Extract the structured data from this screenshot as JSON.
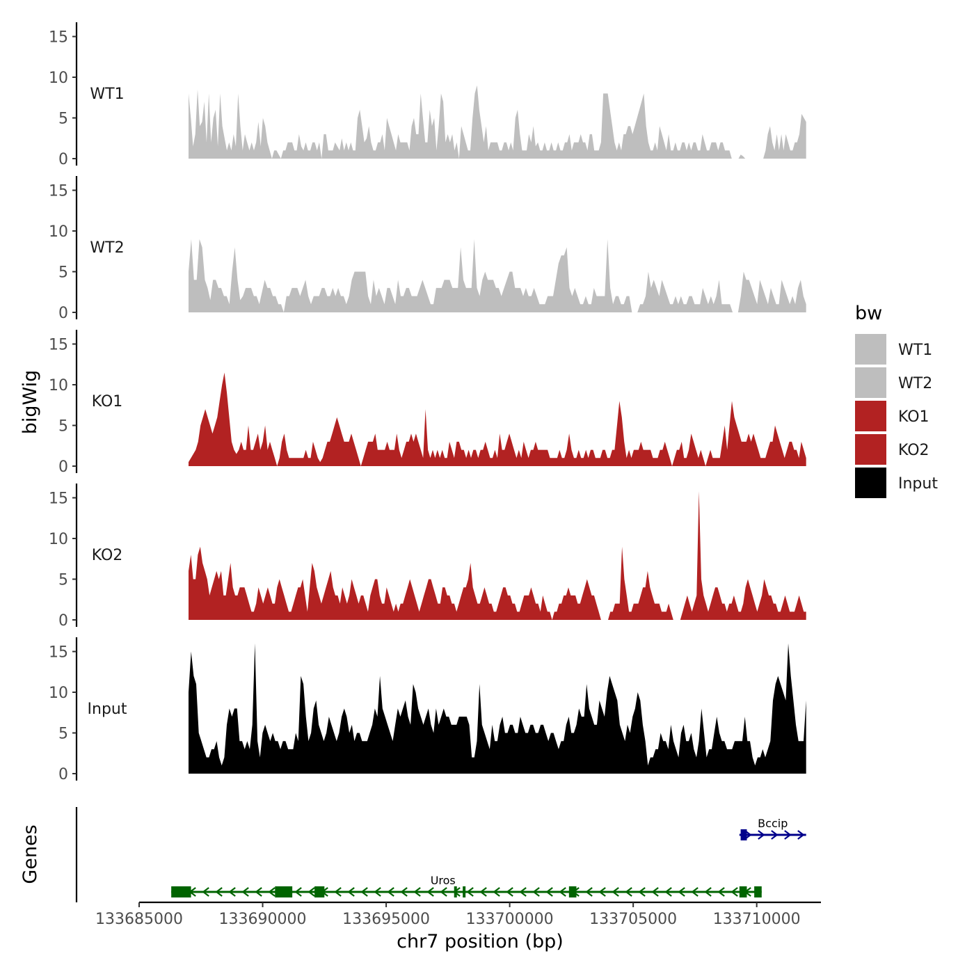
{
  "chart_data": {
    "type": "area",
    "ylabel": "bigWig",
    "xlabel": "chr7 position (bp)",
    "ylim": [
      0,
      16
    ],
    "yticks": [
      0,
      5,
      10,
      15
    ],
    "x_range": [
      133685000,
      133712600
    ],
    "data_span": [
      133687000,
      133712000
    ],
    "xticks": [
      133685000,
      133690000,
      133695000,
      133700000,
      133705000,
      133710000
    ],
    "xtick_labels": [
      "133685000",
      "133690000",
      "133695000",
      "133700000",
      "133705000",
      "133710000"
    ],
    "series": [
      {
        "name": "WT1",
        "color": "#bebebe",
        "values": [
          8,
          5,
          1.5,
          3,
          8.5,
          4,
          4.5,
          7,
          2,
          8,
          2,
          5,
          6,
          1.5,
          8,
          4,
          2.5,
          1,
          2,
          1,
          3,
          1.5,
          8,
          4,
          1,
          3,
          2,
          1,
          2,
          1,
          2,
          4.5,
          1.5,
          5,
          4,
          2,
          1,
          0,
          1,
          1,
          0.5,
          0,
          1,
          1,
          2,
          2,
          2,
          1,
          1,
          3,
          1.5,
          1,
          2,
          1,
          1,
          2,
          2,
          1,
          2,
          0,
          3,
          3,
          1,
          1,
          1,
          2,
          1.5,
          1,
          2.5,
          1,
          2,
          1,
          2,
          1,
          1,
          5,
          6,
          4,
          2,
          2.5,
          4,
          2,
          1,
          1,
          2,
          2,
          3,
          1,
          5,
          4,
          3,
          2,
          1,
          3,
          2,
          2,
          2,
          2,
          1,
          4,
          5,
          3,
          3,
          8,
          5,
          2,
          2,
          6,
          4,
          5,
          1,
          4,
          8,
          7,
          2,
          3,
          2,
          3,
          1,
          2,
          0,
          4,
          3,
          2,
          1,
          1,
          5,
          8,
          9,
          6,
          4,
          2,
          4,
          1,
          2,
          2,
          2,
          2,
          1,
          1,
          2,
          2,
          1,
          2,
          1,
          5,
          6,
          3,
          1,
          1,
          1,
          3,
          2,
          4,
          1.5,
          2,
          1,
          1,
          2,
          1,
          1,
          2,
          1,
          1,
          2,
          1,
          1,
          2,
          2,
          3,
          1,
          2,
          2,
          2,
          3,
          2,
          2,
          1,
          3,
          3,
          1,
          1,
          1,
          2,
          8,
          8,
          8,
          6,
          4,
          2,
          1,
          2,
          1,
          3,
          3,
          4,
          4,
          3,
          4,
          5,
          6,
          7,
          8,
          4,
          2,
          1,
          1,
          2,
          1,
          4,
          3,
          2,
          1,
          3,
          1,
          1,
          2,
          1,
          1,
          2,
          2,
          1,
          2,
          1,
          2,
          2,
          1,
          1,
          3,
          2,
          1,
          1,
          2,
          2,
          2,
          1,
          2,
          2,
          1,
          1,
          1,
          0,
          0,
          0,
          0,
          0.5,
          0.3,
          0,
          0,
          0,
          0,
          0,
          0,
          0,
          0,
          0,
          1,
          3,
          4,
          2,
          1,
          3,
          1,
          3,
          1,
          3,
          2,
          1,
          1,
          2,
          2,
          3,
          5.5,
          5,
          4.5
        ]
      },
      {
        "name": "WT2",
        "color": "#bebebe",
        "values": [
          5,
          9,
          4,
          4,
          9,
          8,
          4,
          3,
          1.5,
          4,
          4,
          3,
          3,
          2,
          2,
          1,
          5,
          8,
          4,
          1.5,
          2,
          3,
          3,
          3,
          2,
          2,
          1,
          2.5,
          4,
          3,
          3,
          2,
          2,
          1,
          1,
          0,
          2,
          2,
          3,
          3,
          3,
          2,
          3,
          4,
          2,
          1,
          2,
          2,
          2,
          3,
          3,
          2,
          2,
          3,
          2,
          3,
          2,
          2,
          1,
          2,
          4,
          5,
          5,
          5,
          5,
          5,
          2,
          1,
          4,
          2,
          3,
          2,
          1,
          3,
          3,
          2,
          1,
          4,
          2,
          2,
          3,
          3,
          2,
          2,
          2,
          3,
          4,
          3,
          2,
          1,
          1,
          3,
          3,
          3,
          4,
          4,
          4,
          3,
          3,
          3,
          8,
          4,
          3,
          3,
          3,
          9,
          3,
          2,
          4,
          5,
          4,
          4,
          4,
          3,
          3,
          2,
          3,
          4,
          5,
          5,
          3,
          3,
          3,
          2,
          3,
          2,
          2,
          3,
          2,
          1,
          1,
          1,
          2,
          2,
          2,
          4,
          6,
          7,
          7,
          8,
          3,
          2,
          3,
          2,
          1,
          1,
          2,
          1,
          1,
          3,
          2,
          2,
          2,
          2,
          9,
          3,
          1,
          2,
          2,
          1,
          1,
          2,
          2,
          0,
          0,
          0,
          1,
          1,
          2,
          5,
          3,
          4,
          3,
          2,
          4,
          3,
          2,
          1,
          1,
          2,
          1,
          2,
          1,
          1,
          2,
          2,
          1,
          1,
          1,
          3,
          2,
          1,
          2,
          1,
          2,
          4,
          1,
          1,
          1,
          1,
          0,
          0,
          0,
          2,
          5,
          4,
          4,
          3,
          2,
          1,
          4,
          3,
          2,
          1,
          3,
          2,
          1,
          1,
          4,
          3,
          2,
          1,
          2,
          1,
          3,
          4,
          2,
          1
        ]
      },
      {
        "name": "KO1",
        "color": "#b22222",
        "values": [
          0.5,
          1,
          1.5,
          2,
          3,
          5,
          6,
          7,
          6,
          5,
          4,
          5,
          6,
          8,
          10,
          11.5,
          9,
          6,
          3,
          2,
          1.5,
          2,
          3,
          2,
          2,
          5,
          2,
          2,
          3,
          4,
          2,
          3,
          5,
          2,
          3,
          2,
          1,
          0,
          1,
          3,
          4,
          2,
          1,
          1,
          1,
          1,
          1,
          1,
          1,
          2,
          1,
          1,
          3,
          2,
          1,
          0.5,
          1,
          2,
          3,
          3,
          4,
          5,
          6,
          5,
          4,
          3,
          3,
          3,
          4,
          3,
          2,
          1,
          0,
          1,
          2,
          3,
          3,
          3,
          4,
          2,
          2,
          2,
          2,
          3,
          2,
          2,
          2,
          4,
          2,
          1,
          2,
          3,
          3,
          4,
          3,
          4,
          3,
          2,
          1,
          7,
          2,
          1,
          2,
          1,
          2,
          1,
          2,
          1,
          1,
          3,
          2,
          1,
          3,
          3,
          2,
          2,
          1,
          2,
          1,
          2,
          2,
          1,
          2,
          2,
          3,
          2,
          1,
          1,
          2,
          1,
          4,
          2,
          2,
          3,
          4,
          3,
          2,
          1,
          2,
          1,
          3,
          2,
          1,
          2,
          2,
          3,
          2,
          2,
          2,
          2,
          2,
          1,
          1,
          1,
          1,
          2,
          1,
          1,
          2,
          4,
          2,
          1,
          1,
          2,
          1,
          1,
          2,
          1,
          2,
          2,
          1,
          1,
          1,
          2,
          2,
          1,
          1,
          2,
          2,
          5,
          8,
          6,
          3,
          1,
          2,
          1,
          2,
          2,
          2,
          3,
          2,
          2,
          2,
          2,
          1,
          1,
          1,
          2,
          2,
          3,
          2,
          1,
          0,
          1,
          2,
          2,
          3,
          1,
          1,
          2,
          4,
          3,
          2,
          1,
          2,
          1,
          0,
          1,
          2,
          1,
          1,
          1,
          1,
          3,
          5,
          2,
          5,
          8,
          6,
          5,
          4,
          3,
          3,
          3,
          4,
          3,
          4,
          3,
          2,
          1,
          1,
          1,
          2,
          3,
          3,
          5,
          4,
          3,
          2,
          1,
          2,
          3,
          3,
          2,
          2,
          1,
          3,
          2,
          1
        ]
      },
      {
        "name": "KO2",
        "color": "#b22222",
        "values": [
          6,
          8,
          5,
          5,
          8,
          9,
          7,
          6,
          5,
          3,
          4,
          5,
          6,
          5,
          6,
          3,
          3,
          5,
          7,
          4,
          3,
          3,
          4,
          4,
          4,
          3,
          2,
          1,
          1,
          2,
          4,
          3,
          2,
          3,
          4,
          3,
          2,
          2,
          4,
          5,
          4,
          3,
          2,
          1,
          1,
          2,
          3,
          4,
          4,
          5,
          3,
          1,
          4,
          7,
          6,
          4,
          3,
          2,
          3,
          4,
          5,
          6,
          4,
          3,
          3,
          2,
          4,
          3,
          2,
          3,
          5,
          4,
          3,
          2,
          3,
          3,
          2,
          1,
          3,
          4,
          5,
          5,
          3,
          2,
          2,
          4,
          3,
          2,
          1,
          2,
          1,
          2,
          2,
          3,
          4,
          5,
          4,
          3,
          2,
          1,
          2,
          3,
          4,
          5,
          5,
          4,
          3,
          2,
          2,
          4,
          4,
          3,
          3,
          2,
          2,
          1,
          2,
          3,
          4,
          4,
          5,
          7,
          4,
          3,
          2,
          2,
          3,
          4,
          3,
          2,
          2,
          1,
          1,
          2,
          3,
          4,
          4,
          3,
          3,
          2,
          2,
          1,
          1,
          2,
          3,
          3,
          3,
          4,
          3,
          2,
          2,
          1,
          3,
          2,
          1,
          1,
          0,
          1,
          1,
          2,
          2,
          3,
          3,
          4,
          3,
          3,
          3,
          2,
          2,
          3,
          4,
          5,
          4,
          3,
          3,
          2,
          1,
          0,
          0,
          0,
          0,
          1,
          1,
          2,
          2,
          2,
          9,
          5,
          3,
          1,
          1,
          2,
          2,
          2,
          3,
          4,
          4,
          6,
          4,
          3,
          2,
          2,
          2,
          1,
          1,
          1,
          2,
          1,
          0,
          0,
          0,
          0,
          1,
          2,
          3,
          2,
          1,
          2,
          3,
          15.8,
          5,
          3,
          2,
          1,
          2,
          3,
          4,
          4,
          3,
          2,
          2,
          1,
          2,
          2,
          3,
          2,
          1,
          1,
          2,
          4,
          5,
          4,
          3,
          2,
          1,
          2,
          3,
          5,
          4,
          3,
          3,
          2,
          2,
          1,
          1,
          2,
          3,
          2,
          1,
          1,
          1,
          2,
          3,
          2,
          1,
          1
        ]
      },
      {
        "name": "Input",
        "color": "#000000",
        "values": [
          10,
          15,
          12,
          11,
          5,
          4,
          3,
          2,
          2,
          3,
          3,
          4,
          2,
          1,
          2,
          6,
          8,
          7,
          8,
          8,
          4,
          4,
          3,
          4,
          3,
          6,
          16,
          4,
          2,
          5,
          6,
          5,
          4,
          5,
          4,
          4,
          3,
          4,
          4,
          3,
          3,
          3,
          5,
          4,
          12,
          11,
          7,
          4,
          5,
          8,
          9,
          6,
          5,
          4,
          5,
          7,
          6,
          5,
          4,
          5,
          7,
          8,
          7,
          5,
          6,
          4,
          5,
          5,
          4,
          4,
          4,
          5,
          6,
          8,
          7,
          12,
          8,
          7,
          6,
          5,
          4,
          6,
          8,
          7,
          8,
          9,
          7,
          6,
          11,
          10,
          8,
          7,
          6,
          7,
          8,
          6,
          5,
          8,
          6,
          7,
          8,
          7,
          7,
          6,
          6,
          6,
          7,
          7,
          7,
          7,
          6,
          2,
          2,
          4,
          11,
          6,
          5,
          4,
          3,
          6,
          4,
          4,
          6,
          7,
          5,
          5,
          6,
          6,
          5,
          5,
          7,
          6,
          5,
          5,
          6,
          6,
          5,
          5,
          6,
          6,
          5,
          4,
          5,
          5,
          4,
          3,
          4,
          4,
          6,
          7,
          5,
          5,
          6,
          8,
          7,
          7,
          11,
          8,
          7,
          6,
          6,
          9,
          8,
          7,
          10,
          12,
          11,
          10,
          9,
          6,
          5,
          4,
          6,
          5,
          7,
          8,
          10,
          9,
          6,
          4,
          1,
          2,
          2,
          3,
          3,
          5,
          4,
          4,
          3,
          6,
          4,
          3,
          2,
          5,
          6,
          4,
          4,
          5,
          3,
          2,
          4,
          8,
          5,
          2,
          3,
          3,
          5,
          7,
          5,
          4,
          4,
          3,
          3,
          3,
          4,
          4,
          4,
          4,
          7,
          4,
          4,
          2,
          1,
          2,
          2,
          3,
          2,
          3,
          4,
          9,
          11,
          12,
          11,
          10,
          9,
          16,
          12,
          9,
          6,
          4,
          4,
          4,
          9
        ]
      }
    ],
    "genes": [
      {
        "name": "Bccip",
        "color": "#00008b",
        "strand": "+",
        "start": 133709300,
        "end": 133712000,
        "exons": [
          [
            133709350,
            133709600
          ]
        ]
      },
      {
        "name": "Uros",
        "color": "#006400",
        "strand": "-",
        "start": 133686300,
        "end": 133710200,
        "exons": [
          [
            133686300,
            133687100
          ],
          [
            133690500,
            133691200
          ],
          [
            133692100,
            133692500
          ],
          [
            133697750,
            133697850
          ],
          [
            133698100,
            133698200
          ],
          [
            133702400,
            133702700
          ],
          [
            133709300,
            133709600
          ],
          [
            133709900,
            133710200
          ]
        ]
      }
    ],
    "legend": {
      "title": "bw",
      "placement": "right",
      "entries": [
        {
          "label": "WT1",
          "color": "#bebebe"
        },
        {
          "label": "WT2",
          "color": "#bebebe"
        },
        {
          "label": "KO1",
          "color": "#b22222"
        },
        {
          "label": "KO2",
          "color": "#b22222"
        },
        {
          "label": "Input",
          "color": "#000000"
        }
      ]
    },
    "genes_track_label": "Genes"
  }
}
